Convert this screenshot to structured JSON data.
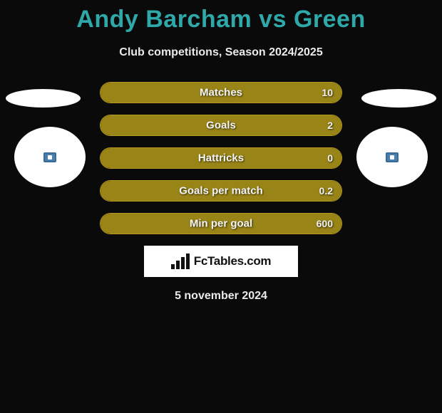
{
  "title": "Andy Barcham vs Green",
  "subtitle": "Club competitions, Season 2024/2025",
  "date": "5 november 2024",
  "logo_text": "FcTables.com",
  "colors": {
    "title": "#2ea8a8",
    "bar_border": "#b59a1a",
    "bar_fill": "#998417",
    "background": "#0a0a0a",
    "text": "#eaeaea"
  },
  "bars": [
    {
      "label": "Matches",
      "value": "10",
      "fill_pct": 100
    },
    {
      "label": "Goals",
      "value": "2",
      "fill_pct": 100
    },
    {
      "label": "Hattricks",
      "value": "0",
      "fill_pct": 100
    },
    {
      "label": "Goals per match",
      "value": "0.2",
      "fill_pct": 100
    },
    {
      "label": "Min per goal",
      "value": "600",
      "fill_pct": 100
    }
  ]
}
